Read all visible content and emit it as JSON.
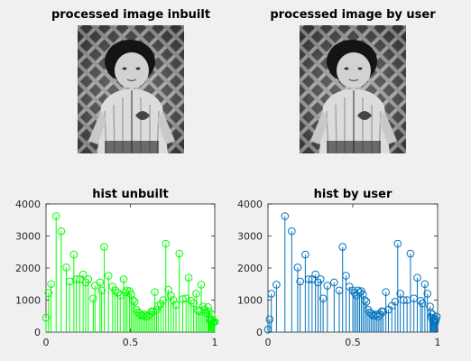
{
  "figure": {
    "background": "#f0f0f0"
  },
  "images": [
    {
      "title": "processed image inbuilt",
      "content": "grayscale photo of a child in a striped jacket in front of a lattice fence"
    },
    {
      "title": "processed image by user",
      "content": "grayscale photo of a child in a striped jacket in front of a lattice fence"
    }
  ],
  "chart_data": [
    {
      "type": "stem",
      "title": "hist unbuilt",
      "xlabel": "",
      "ylabel": "",
      "xlim": [
        0,
        1
      ],
      "ylim": [
        0,
        4000
      ],
      "xticks": [
        "0",
        "0.5",
        "1"
      ],
      "yticks": [
        "0",
        "1000",
        "2000",
        "3000",
        "4000"
      ],
      "color": "#00ff00",
      "grid": false,
      "x": [
        0.0,
        0.015,
        0.03,
        0.06,
        0.09,
        0.12,
        0.14,
        0.165,
        0.18,
        0.2,
        0.22,
        0.235,
        0.25,
        0.28,
        0.29,
        0.32,
        0.33,
        0.345,
        0.37,
        0.395,
        0.41,
        0.425,
        0.44,
        0.46,
        0.47,
        0.48,
        0.495,
        0.505,
        0.515,
        0.525,
        0.535,
        0.545,
        0.555,
        0.565,
        0.575,
        0.585,
        0.595,
        0.605,
        0.615,
        0.625,
        0.635,
        0.645,
        0.655,
        0.665,
        0.68,
        0.695,
        0.71,
        0.725,
        0.74,
        0.755,
        0.77,
        0.79,
        0.81,
        0.83,
        0.845,
        0.86,
        0.875,
        0.89,
        0.9,
        0.91,
        0.92,
        0.93,
        0.94,
        0.95,
        0.96,
        0.965,
        0.97,
        0.975,
        0.98,
        0.985,
        0.99,
        0.995,
        1.0
      ],
      "values": [
        450,
        1220,
        1500,
        3620,
        3150,
        2020,
        1580,
        2420,
        1650,
        1650,
        1800,
        1550,
        1650,
        1050,
        1450,
        1550,
        1300,
        2660,
        1760,
        1420,
        1300,
        1230,
        1150,
        1650,
        1240,
        1300,
        1280,
        1180,
        1000,
        950,
        700,
        620,
        580,
        520,
        520,
        550,
        480,
        500,
        560,
        650,
        640,
        1250,
        700,
        820,
        880,
        1000,
        2760,
        1320,
        1140,
        1000,
        850,
        2450,
        1030,
        1050,
        1700,
        980,
        900,
        1200,
        680,
        650,
        1480,
        800,
        700,
        600,
        780,
        650,
        400,
        350,
        550,
        400,
        300,
        320,
        320
      ]
    },
    {
      "type": "stem",
      "title": "hist by user",
      "xlabel": "",
      "ylabel": "",
      "xlim": [
        0,
        1
      ],
      "ylim": [
        0,
        4000
      ],
      "xticks": [
        "0",
        "0.5",
        "1"
      ],
      "yticks": [
        "0",
        "1000",
        "2000",
        "3000",
        "4000"
      ],
      "color": "#0072bd",
      "grid": false,
      "x": [
        0.0,
        0.01,
        0.02,
        0.05,
        0.1,
        0.14,
        0.175,
        0.19,
        0.22,
        0.24,
        0.26,
        0.28,
        0.295,
        0.31,
        0.325,
        0.35,
        0.39,
        0.42,
        0.44,
        0.46,
        0.48,
        0.5,
        0.51,
        0.52,
        0.53,
        0.54,
        0.55,
        0.56,
        0.57,
        0.58,
        0.59,
        0.6,
        0.61,
        0.62,
        0.63,
        0.64,
        0.65,
        0.66,
        0.67,
        0.68,
        0.695,
        0.71,
        0.73,
        0.75,
        0.765,
        0.78,
        0.8,
        0.82,
        0.84,
        0.86,
        0.88,
        0.9,
        0.91,
        0.925,
        0.94,
        0.955,
        0.96,
        0.965,
        0.97,
        0.975,
        0.98,
        0.985,
        0.99,
        0.995
      ],
      "values": [
        80,
        400,
        1200,
        1480,
        3620,
        3150,
        2020,
        1580,
        2420,
        1650,
        1650,
        1800,
        1550,
        1650,
        1050,
        1450,
        1550,
        1300,
        2660,
        1760,
        1420,
        1300,
        1230,
        1150,
        1300,
        1240,
        1280,
        1180,
        1000,
        950,
        700,
        620,
        580,
        520,
        520,
        550,
        480,
        560,
        650,
        640,
        1250,
        700,
        820,
        950,
        2760,
        1200,
        1000,
        1000,
        2450,
        1050,
        1700,
        980,
        900,
        1500,
        1200,
        800,
        600,
        450,
        550,
        350,
        420,
        300,
        380,
        480
      ]
    }
  ]
}
